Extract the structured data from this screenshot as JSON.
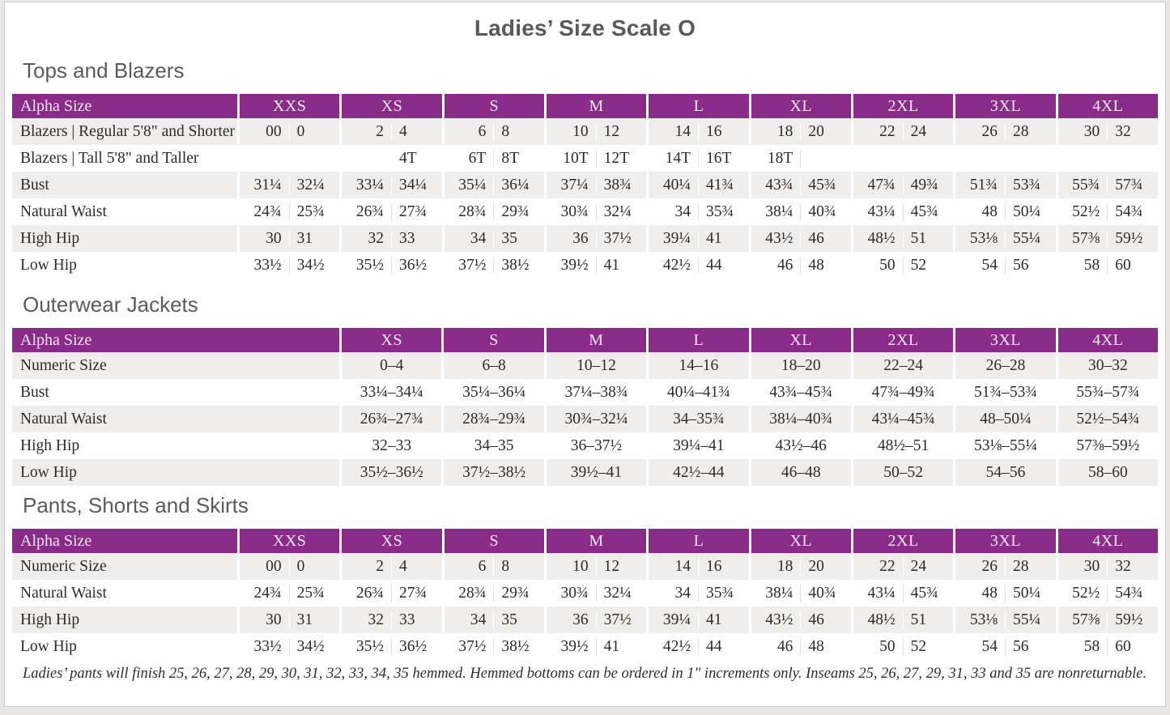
{
  "title": "Ladies’ Size Scale O",
  "colors": {
    "header_bg": "#8A2B8A",
    "header_text": "#F4ECF4",
    "row_alt_bg": "#F0EEEC",
    "heading_text": "#5A5B5D",
    "body_text": "#2E2C29"
  },
  "sections": [
    {
      "title": "Tops and Blazers",
      "table": {
        "corner_label": "Alpha Size",
        "split_columns": true,
        "label_width": 278,
        "columns": [
          "XXS",
          "XS",
          "S",
          "M",
          "L",
          "XL",
          "2XL",
          "3XL",
          "4XL"
        ],
        "rows": [
          {
            "label": "Blazers  |  Regular 5'8\" and Shorter",
            "cells": [
              [
                "00",
                "0"
              ],
              [
                "2",
                "4"
              ],
              [
                "6",
                "8"
              ],
              [
                "10",
                "12"
              ],
              [
                "14",
                "16"
              ],
              [
                "18",
                "20"
              ],
              [
                "22",
                "24"
              ],
              [
                "26",
                "28"
              ],
              [
                "30",
                "32"
              ]
            ]
          },
          {
            "label": "Blazers  |  Tall 5'8\" and Taller",
            "cells": [
              [
                "",
                ""
              ],
              [
                "",
                "4T"
              ],
              [
                "6T",
                "8T"
              ],
              [
                "10T",
                "12T"
              ],
              [
                "14T",
                "16T"
              ],
              [
                "18T",
                ""
              ],
              [
                "",
                ""
              ],
              [
                "",
                ""
              ],
              [
                "",
                ""
              ]
            ]
          },
          {
            "label": "Bust",
            "cells": [
              [
                "31¼",
                "32¼"
              ],
              [
                "33¼",
                "34¼"
              ],
              [
                "35¼",
                "36¼"
              ],
              [
                "37¼",
                "38¾"
              ],
              [
                "40¼",
                "41¾"
              ],
              [
                "43¾",
                "45¾"
              ],
              [
                "47¾",
                "49¾"
              ],
              [
                "51¾",
                "53¾"
              ],
              [
                "55¾",
                "57¾"
              ]
            ]
          },
          {
            "label": "Natural Waist",
            "cells": [
              [
                "24¾",
                "25¾"
              ],
              [
                "26¾",
                "27¾"
              ],
              [
                "28¾",
                "29¾"
              ],
              [
                "30¾",
                "32¼"
              ],
              [
                "34",
                "35¾"
              ],
              [
                "38¼",
                "40¾"
              ],
              [
                "43¼",
                "45¾"
              ],
              [
                "48",
                "50¼"
              ],
              [
                "52½",
                "54¾"
              ]
            ]
          },
          {
            "label": "High Hip",
            "cells": [
              [
                "30",
                "31"
              ],
              [
                "32",
                "33"
              ],
              [
                "34",
                "35"
              ],
              [
                "36",
                "37½"
              ],
              [
                "39¼",
                "41"
              ],
              [
                "43½",
                "46"
              ],
              [
                "48½",
                "51"
              ],
              [
                "53⅛",
                "55¼"
              ],
              [
                "57⅜",
                "59½"
              ]
            ]
          },
          {
            "label": "Low Hip",
            "cells": [
              [
                "33½",
                "34½"
              ],
              [
                "35½",
                "36½"
              ],
              [
                "37½",
                "38½"
              ],
              [
                "39½",
                "41"
              ],
              [
                "42½",
                "44"
              ],
              [
                "46",
                "48"
              ],
              [
                "50",
                "52"
              ],
              [
                "54",
                "56"
              ],
              [
                "58",
                "60"
              ]
            ]
          }
        ]
      }
    },
    {
      "title": "Outerwear Jackets",
      "table": {
        "corner_label": "Alpha Size",
        "split_columns": false,
        "label_width": 404,
        "columns": [
          "XS",
          "S",
          "M",
          "L",
          "XL",
          "2XL",
          "3XL",
          "4XL"
        ],
        "rows": [
          {
            "label": "Numeric Size",
            "cells": [
              "0–4",
              "6–8",
              "10–12",
              "14–16",
              "18–20",
              "22–24",
              "26–28",
              "30–32"
            ]
          },
          {
            "label": "Bust",
            "cells": [
              "33¼–34¼",
              "35¼–36¼",
              "37¼–38¾",
              "40¼–41¾",
              "43¾–45¾",
              "47¾–49¾",
              "51¾–53¾",
              "55¾–57¾"
            ]
          },
          {
            "label": "Natural Waist",
            "cells": [
              "26¾–27¾",
              "28¾–29¾",
              "30¾–32¼",
              "34–35¾",
              "38¼–40¾",
              "43¼–45¾",
              "48–50¼",
              "52½–54¾"
            ]
          },
          {
            "label": "High Hip",
            "cells": [
              "32–33",
              "34–35",
              "36–37½",
              "39¼–41",
              "43½–46",
              "48½–51",
              "53⅛–55¼",
              "57⅜–59½"
            ]
          },
          {
            "label": "Low Hip",
            "cells": [
              "35½–36½",
              "37½–38½",
              "39½–41",
              "42½–44",
              "46–48",
              "50–52",
              "54–56",
              "58–60"
            ]
          }
        ]
      }
    },
    {
      "title": "Pants, Shorts and Skirts",
      "table": {
        "corner_label": "Alpha Size",
        "split_columns": true,
        "label_width": 278,
        "columns": [
          "XXS",
          "XS",
          "S",
          "M",
          "L",
          "XL",
          "2XL",
          "3XL",
          "4XL"
        ],
        "rows": [
          {
            "label": "Numeric Size",
            "cells": [
              [
                "00",
                "0"
              ],
              [
                "2",
                "4"
              ],
              [
                "6",
                "8"
              ],
              [
                "10",
                "12"
              ],
              [
                "14",
                "16"
              ],
              [
                "18",
                "20"
              ],
              [
                "22",
                "24"
              ],
              [
                "26",
                "28"
              ],
              [
                "30",
                "32"
              ]
            ]
          },
          {
            "label": "Natural Waist",
            "cells": [
              [
                "24¾",
                "25¾"
              ],
              [
                "26¾",
                "27¾"
              ],
              [
                "28¾",
                "29¾"
              ],
              [
                "30¾",
                "32¼"
              ],
              [
                "34",
                "35¾"
              ],
              [
                "38¼",
                "40¾"
              ],
              [
                "43¼",
                "45¾"
              ],
              [
                "48",
                "50¼"
              ],
              [
                "52½",
                "54¾"
              ]
            ]
          },
          {
            "label": "High Hip",
            "cells": [
              [
                "30",
                "31"
              ],
              [
                "32",
                "33"
              ],
              [
                "34",
                "35"
              ],
              [
                "36",
                "37½"
              ],
              [
                "39¼",
                "41"
              ],
              [
                "43½",
                "46"
              ],
              [
                "48½",
                "51"
              ],
              [
                "53⅛",
                "55¼"
              ],
              [
                "57⅜",
                "59½"
              ]
            ]
          },
          {
            "label": "Low Hip",
            "cells": [
              [
                "33½",
                "34½"
              ],
              [
                "35½",
                "36½"
              ],
              [
                "37½",
                "38½"
              ],
              [
                "39½",
                "41"
              ],
              [
                "42½",
                "44"
              ],
              [
                "46",
                "48"
              ],
              [
                "50",
                "52"
              ],
              [
                "54",
                "56"
              ],
              [
                "58",
                "60"
              ]
            ]
          }
        ]
      }
    }
  ],
  "footnote": "Ladies’ pants will finish 25, 26, 27, 28, 29, 30, 31, 32, 33, 34, 35 hemmed. Hemmed bottoms can be ordered in 1\" increments only. Inseams 25, 26, 27, 29, 31, 33 and 35 are nonreturnable."
}
